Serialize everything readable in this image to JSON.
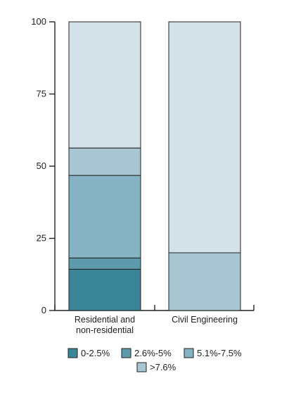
{
  "chart_data": {
    "type": "bar",
    "stacked": true,
    "title": "",
    "xlabel": "",
    "ylabel": "",
    "ylim": [
      0,
      100
    ],
    "yticks": [
      0,
      25,
      50,
      75,
      100
    ],
    "grid": false,
    "legend_position": "bottom",
    "categories": [
      "Residential and non-residential",
      "Civil Engineering"
    ],
    "category_label_lines": [
      [
        "Residential and",
        "non-residential"
      ],
      [
        "Civil Engineering"
      ]
    ],
    "series": [
      {
        "name": "0-2.5%",
        "color": "#3a8597",
        "values": [
          14.3,
          0
        ]
      },
      {
        "name": "2.6%-5%",
        "color": "#5d9aac",
        "values": [
          3.9,
          0
        ]
      },
      {
        "name": "5.1%-7.5%",
        "color": "#86b3c3",
        "values": [
          28.6,
          0
        ]
      },
      {
        "name": ">7.6%",
        "color": "#a7c6d2",
        "values": [
          9.5,
          20
        ]
      }
    ],
    "remainder_color": "#d3e2e8"
  }
}
